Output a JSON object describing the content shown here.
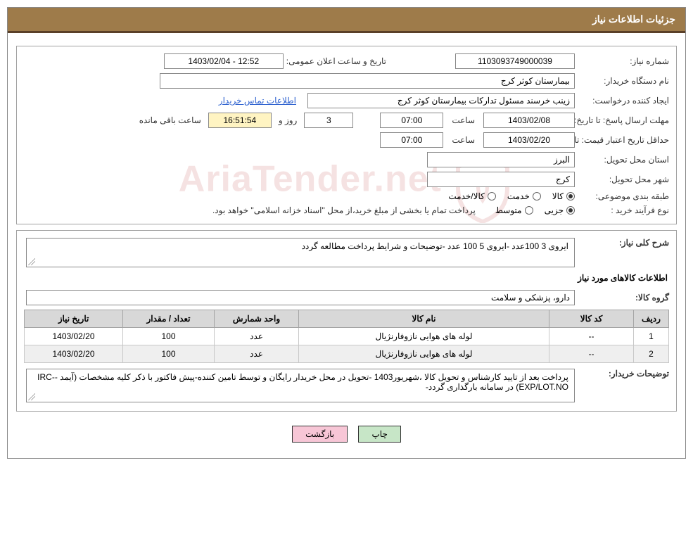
{
  "header": {
    "title": "جزئیات اطلاعات نیاز"
  },
  "fields": {
    "need_no_label": "شماره نیاز:",
    "need_no": "1103093749000039",
    "announce_label": "تاریخ و ساعت اعلان عمومی:",
    "announce_value": "1403/02/04 - 12:52",
    "buyer_org_label": "نام دستگاه خریدار:",
    "buyer_org": "بیمارستان کوثر کرج",
    "requester_label": "ایجاد کننده درخواست:",
    "requester": "زینب خرسند مسئول تدارکات بیمارستان کوثر کرج",
    "contact_link": "اطلاعات تماس خریدار",
    "deadline_label": "مهلت ارسال پاسخ:",
    "to_date_label": "تا تاریخ:",
    "deadline_date": "1403/02/08",
    "time_label": "ساعت",
    "deadline_time": "07:00",
    "days": "3",
    "days_and": "روز و",
    "countdown": "16:51:54",
    "remain": "ساعت باقی مانده",
    "price_valid_label": "حداقل تاریخ اعتبار قیمت:",
    "price_valid_date": "1403/02/20",
    "price_valid_time": "07:00",
    "province_label": "استان محل تحویل:",
    "province": "البرز",
    "city_label": "شهر محل تحویل:",
    "city": "کرج",
    "category_label": "طبقه بندی موضوعی:",
    "cat_goods": "کالا",
    "cat_service": "خدمت",
    "cat_goods_service": "کالا/خدمت",
    "process_label": "نوع فرآیند خرید :",
    "proc_partial": "جزیی",
    "proc_medium": "متوسط",
    "process_note": "پرداخت تمام یا بخشی از مبلغ خرید،از محل \"اسناد خزانه اسلامی\" خواهد بود.",
    "summary_label": "شرح کلی نیاز:",
    "summary": "ایروی 3 100عدد -ایروی 5 100 عدد -توضیحات و شرایط پرداخت مطالعه گردد",
    "items_title": "اطلاعات کالاهای مورد نیاز",
    "group_label": "گروه کالا:",
    "group": "دارو، پزشکی و سلامت",
    "buyer_note_label": "توضیحات خریدار:",
    "buyer_note": "پرداخت بعد از تایید کارشناس و تحویل کالا ،شهریور1403 -تحویل در محل خریدار رایگان و توسط تامین کننده-پیش فاکتور با ذکر کلیه مشخصات (آیمد -IRC-EXP/LOT.NO) در سامانه بارگذاری گردد-"
  },
  "table": {
    "columns": [
      "ردیف",
      "کد کالا",
      "نام کالا",
      "واحد شمارش",
      "تعداد / مقدار",
      "تاریخ نیاز"
    ],
    "rows": [
      [
        "1",
        "--",
        "لوله های هوایی نازوفارنژیال",
        "عدد",
        "100",
        "1403/02/20"
      ],
      [
        "2",
        "--",
        "لوله های هوایی نازوفارنژیال",
        "عدد",
        "100",
        "1403/02/20"
      ]
    ],
    "col_widths": [
      "50px",
      "120px",
      "auto",
      "120px",
      "130px",
      "140px"
    ]
  },
  "buttons": {
    "print": "چاپ",
    "back": "بازگشت"
  },
  "watermark": "AriaTender.net"
}
